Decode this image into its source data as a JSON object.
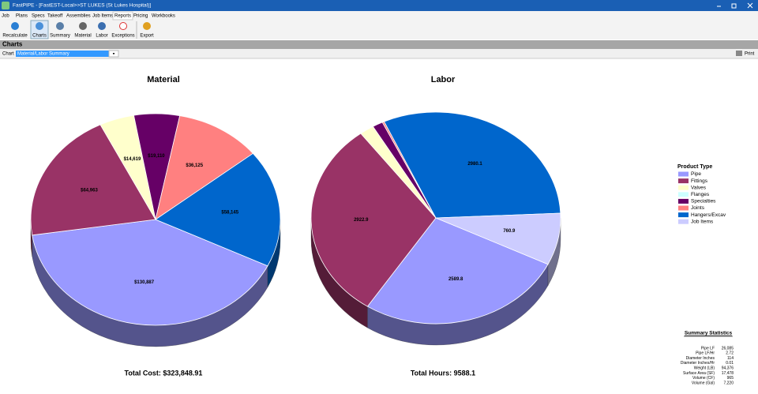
{
  "app": {
    "title": "FastPIPE - [FastEST-Local>>ST LUKES (St Lukes Hospital)]",
    "menu": [
      "Job",
      "Plans",
      "Specs",
      "Takeoff",
      "Assemblies",
      "Job Items",
      "Reports",
      "Pricing",
      "Workbooks"
    ],
    "toolbar": [
      "Recalculate",
      "Charts",
      "Summary",
      "Material",
      "Labor",
      "Exceptions",
      "Export"
    ],
    "section": "Charts",
    "chart_label": "Chart",
    "chart_select": "Material/Labor Summary",
    "print": "Print"
  },
  "legend": {
    "title": "Product Type",
    "items": [
      {
        "name": "Pipe",
        "color": "#9999ff"
      },
      {
        "name": "Fittings",
        "color": "#993366"
      },
      {
        "name": "Valves",
        "color": "#ffffcc"
      },
      {
        "name": "Flanges",
        "color": "#ccffff"
      },
      {
        "name": "Specialties",
        "color": "#660066"
      },
      {
        "name": "Joints",
        "color": "#ff8080"
      },
      {
        "name": "Hangers/Excav",
        "color": "#0066cc"
      },
      {
        "name": "Job Items",
        "color": "#ccccff"
      }
    ]
  },
  "chart_data": [
    {
      "type": "pie",
      "title": "Material",
      "values": [
        130887,
        64963,
        14619,
        0,
        19110,
        36125,
        58145,
        0
      ],
      "value_labels": [
        "$130,887",
        "$64,963",
        "$14,619",
        null,
        "$19,110",
        "$36,125",
        "$58,145",
        null
      ],
      "total": "Total Cost: $323,848.91"
    },
    {
      "type": "pie",
      "title": "Labor",
      "values": [
        2589.8,
        2922.9,
        180,
        0,
        130,
        24.4,
        2980.1,
        760.9
      ],
      "value_labels": [
        "2589.8",
        "2922.9",
        null,
        null,
        null,
        null,
        "2980.1",
        "760.9"
      ],
      "total": "Total Hours: 9588.1"
    }
  ],
  "summary": {
    "title": "Summary Statistics",
    "rows": [
      [
        "Pipe LF",
        "26,085"
      ],
      [
        "Pipe LF/Hr",
        "2.72"
      ],
      [
        "Diameter Inches",
        "114"
      ],
      [
        "Diameter Inches/Hr",
        "0.01"
      ],
      [
        "Weight (LB)",
        "94,376"
      ],
      [
        "Surface Area (SF)",
        "17,478"
      ],
      [
        "Volume (CF)",
        "965"
      ],
      [
        "Volume (Gal)",
        "7,220"
      ]
    ]
  }
}
